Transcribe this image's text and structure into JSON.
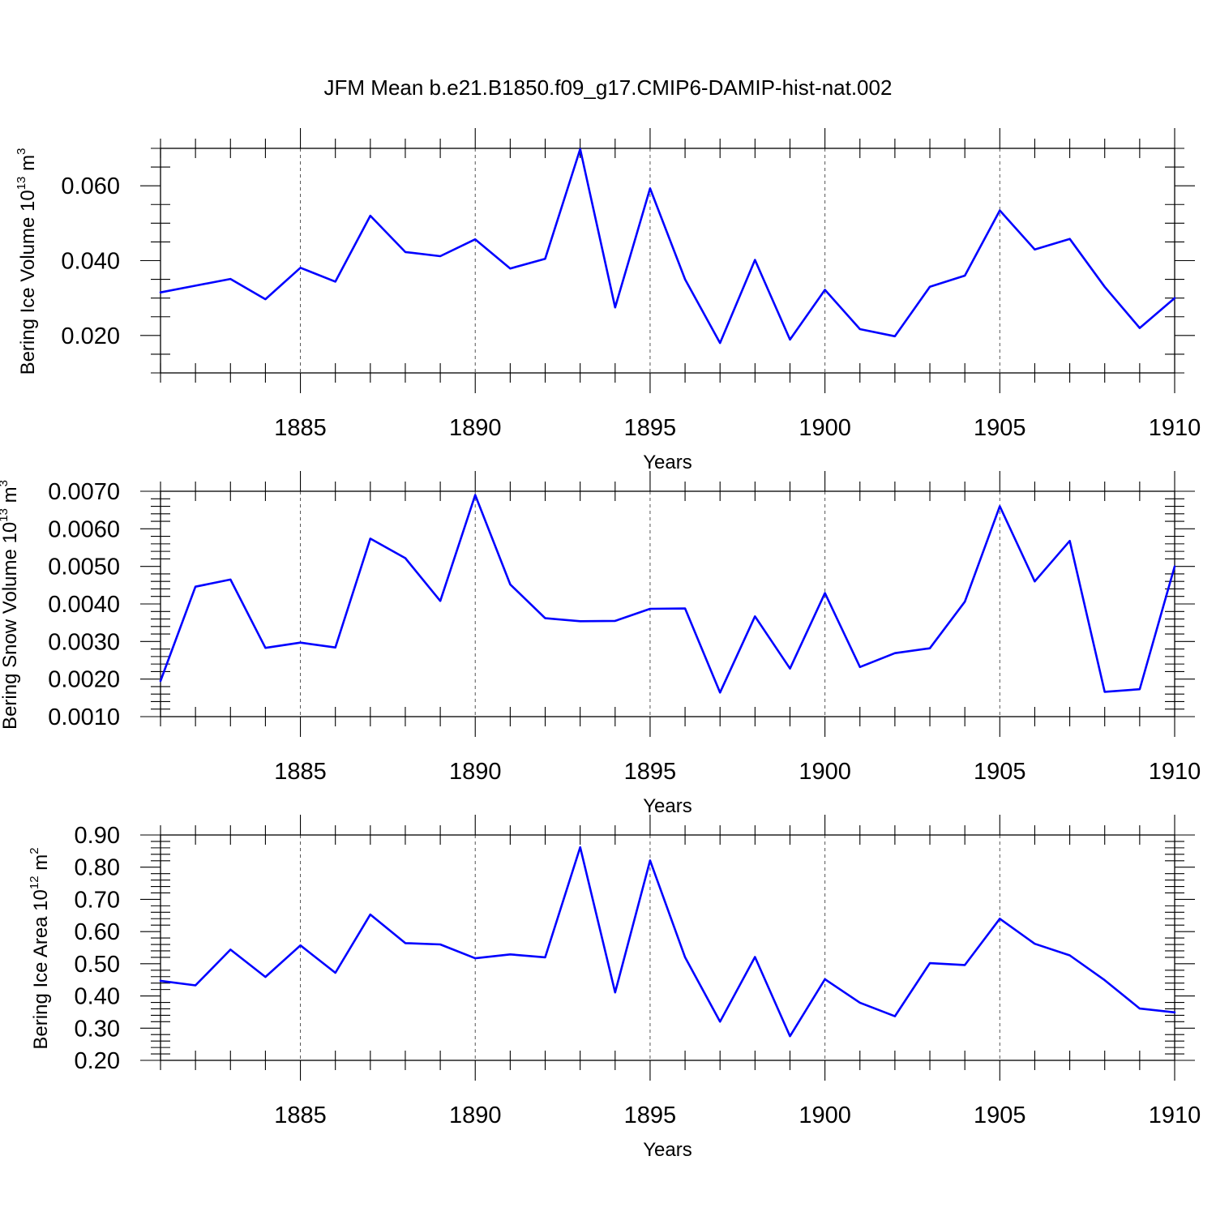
{
  "figure_title": "JFM Mean b.e21.B1850.f09_g17.CMIP6-DAMIP-hist-nat.002",
  "line_color": "#0000ff",
  "chart_data": [
    {
      "type": "line",
      "ylabel_text": "Bering Ice Volume 10",
      "ylabel_exp": "13",
      "ylabel_unit": "m",
      "ylabel_unit_exp": "3",
      "xlabel": "Years",
      "x": [
        1881,
        1882,
        1883,
        1884,
        1885,
        1886,
        1887,
        1888,
        1889,
        1890,
        1891,
        1892,
        1893,
        1894,
        1895,
        1896,
        1897,
        1898,
        1899,
        1900,
        1901,
        1902,
        1903,
        1904,
        1905,
        1906,
        1907,
        1908,
        1909,
        1910
      ],
      "values": [
        0.0315,
        0.0333,
        0.0351,
        0.0297,
        0.0381,
        0.0344,
        0.052,
        0.0423,
        0.0412,
        0.0457,
        0.0379,
        0.0405,
        0.0698,
        0.0275,
        0.0593,
        0.035,
        0.018,
        0.0402,
        0.0189,
        0.0322,
        0.0217,
        0.0198,
        0.033,
        0.036,
        0.0534,
        0.043,
        0.0458,
        0.033,
        0.022,
        0.03
      ],
      "xlim": [
        1881,
        1910
      ],
      "ylim": [
        0.01,
        0.07
      ],
      "major_y_ticks": [
        0.02,
        0.04,
        0.06
      ],
      "major_y_labels": [
        "0.020",
        "0.040",
        "0.060"
      ],
      "minor_y_step": 0.005,
      "x_ticks": [
        1885,
        1890,
        1895,
        1900,
        1905,
        1910
      ],
      "x_tick_labels": [
        "1885",
        "1890",
        "1895",
        "1900",
        "1905",
        "1910"
      ],
      "grid_x": [
        1885,
        1890,
        1895,
        1900,
        1905
      ]
    },
    {
      "type": "line",
      "ylabel_text": "Bering Snow Volume 10",
      "ylabel_exp": "13",
      "ylabel_unit": "m",
      "ylabel_unit_exp": "3",
      "xlabel": "Years",
      "x": [
        1881,
        1882,
        1883,
        1884,
        1885,
        1886,
        1887,
        1888,
        1889,
        1890,
        1891,
        1892,
        1893,
        1894,
        1895,
        1896,
        1897,
        1898,
        1899,
        1900,
        1901,
        1902,
        1903,
        1904,
        1905,
        1906,
        1907,
        1908,
        1909,
        1910
      ],
      "values": [
        0.00195,
        0.00446,
        0.00465,
        0.00283,
        0.00297,
        0.00284,
        0.00574,
        0.00522,
        0.00408,
        0.0069,
        0.00452,
        0.00362,
        0.00354,
        0.00355,
        0.00387,
        0.00388,
        0.00164,
        0.00367,
        0.00228,
        0.00429,
        0.00232,
        0.00269,
        0.00282,
        0.00406,
        0.0066,
        0.0046,
        0.00568,
        0.00166,
        0.00173,
        0.005
      ],
      "xlim": [
        1881,
        1910
      ],
      "ylim": [
        0.001,
        0.007
      ],
      "major_y_ticks": [
        0.001,
        0.002,
        0.003,
        0.004,
        0.005,
        0.006,
        0.007
      ],
      "major_y_labels": [
        "0.0010",
        "0.0020",
        "0.0030",
        "0.0040",
        "0.0050",
        "0.0060",
        "0.0070"
      ],
      "minor_y_step": 0.0002,
      "x_ticks": [
        1885,
        1890,
        1895,
        1900,
        1905,
        1910
      ],
      "x_tick_labels": [
        "1885",
        "1890",
        "1895",
        "1900",
        "1905",
        "1910"
      ],
      "grid_x": [
        1885,
        1890,
        1895,
        1900,
        1905
      ]
    },
    {
      "type": "line",
      "ylabel_text": "Bering Ice Area 10",
      "ylabel_exp": "12",
      "ylabel_unit": "m",
      "ylabel_unit_exp": "2",
      "xlabel": "Years",
      "x": [
        1881,
        1882,
        1883,
        1884,
        1885,
        1886,
        1887,
        1888,
        1889,
        1890,
        1891,
        1892,
        1893,
        1894,
        1895,
        1896,
        1897,
        1898,
        1899,
        1900,
        1901,
        1902,
        1903,
        1904,
        1905,
        1906,
        1907,
        1908,
        1909,
        1910
      ],
      "values": [
        0.447,
        0.433,
        0.544,
        0.459,
        0.557,
        0.472,
        0.653,
        0.564,
        0.56,
        0.517,
        0.529,
        0.52,
        0.862,
        0.411,
        0.821,
        0.52,
        0.32,
        0.521,
        0.275,
        0.452,
        0.379,
        0.337,
        0.502,
        0.496,
        0.64,
        0.562,
        0.526,
        0.449,
        0.361,
        0.349
      ],
      "xlim": [
        1881,
        1910
      ],
      "ylim": [
        0.2,
        0.9
      ],
      "major_y_ticks": [
        0.2,
        0.3,
        0.4,
        0.5,
        0.6,
        0.7,
        0.8,
        0.9
      ],
      "major_y_labels": [
        "0.20",
        "0.30",
        "0.40",
        "0.50",
        "0.60",
        "0.70",
        "0.80",
        "0.90"
      ],
      "minor_y_step": 0.02,
      "x_ticks": [
        1885,
        1890,
        1895,
        1900,
        1905,
        1910
      ],
      "x_tick_labels": [
        "1885",
        "1890",
        "1895",
        "1900",
        "1905",
        "1910"
      ],
      "grid_x": [
        1885,
        1890,
        1895,
        1900,
        1905
      ]
    }
  ]
}
